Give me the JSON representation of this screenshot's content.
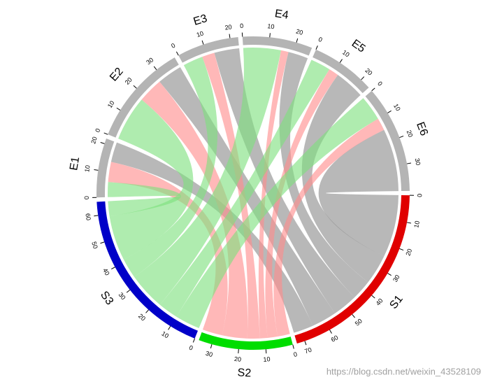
{
  "chart_data": {
    "type": "chord",
    "sources": [
      {
        "name": "S1",
        "color": "#e00000",
        "link_color": "#8c8c8c",
        "ticks": [
          0,
          10,
          20,
          30,
          40,
          50,
          60,
          70
        ]
      },
      {
        "name": "S2",
        "color": "#00dd00",
        "link_color": "#ff8c8c",
        "ticks": [
          0,
          10,
          20,
          30
        ]
      },
      {
        "name": "S3",
        "color": "#0000c8",
        "link_color": "#7ee07e",
        "ticks": [
          0,
          10,
          20,
          30,
          40,
          50,
          60
        ]
      }
    ],
    "targets": [
      {
        "name": "E1",
        "color": "#b4b4b4",
        "ticks": [
          0,
          10,
          20
        ]
      },
      {
        "name": "E2",
        "color": "#b4b4b4",
        "ticks": [
          0,
          10,
          20,
          30
        ]
      },
      {
        "name": "E3",
        "color": "#b4b4b4",
        "ticks": [
          0,
          10,
          20
        ]
      },
      {
        "name": "E4",
        "color": "#b4b4b4",
        "ticks": [
          0,
          10,
          20
        ]
      },
      {
        "name": "E5",
        "color": "#b4b4b4",
        "ticks": [
          0,
          10,
          20
        ]
      },
      {
        "name": "E6",
        "color": "#b4b4b4",
        "ticks": [
          0,
          10,
          20,
          30
        ]
      }
    ],
    "matrix": [
      [
        8,
        10,
        10,
        8,
        12,
        25
      ],
      [
        8,
        10,
        5,
        3,
        4,
        5
      ],
      [
        6,
        18,
        8,
        15,
        8,
        10
      ]
    ],
    "watermark": "https://blog.csdn.net/weixin_43528109"
  }
}
